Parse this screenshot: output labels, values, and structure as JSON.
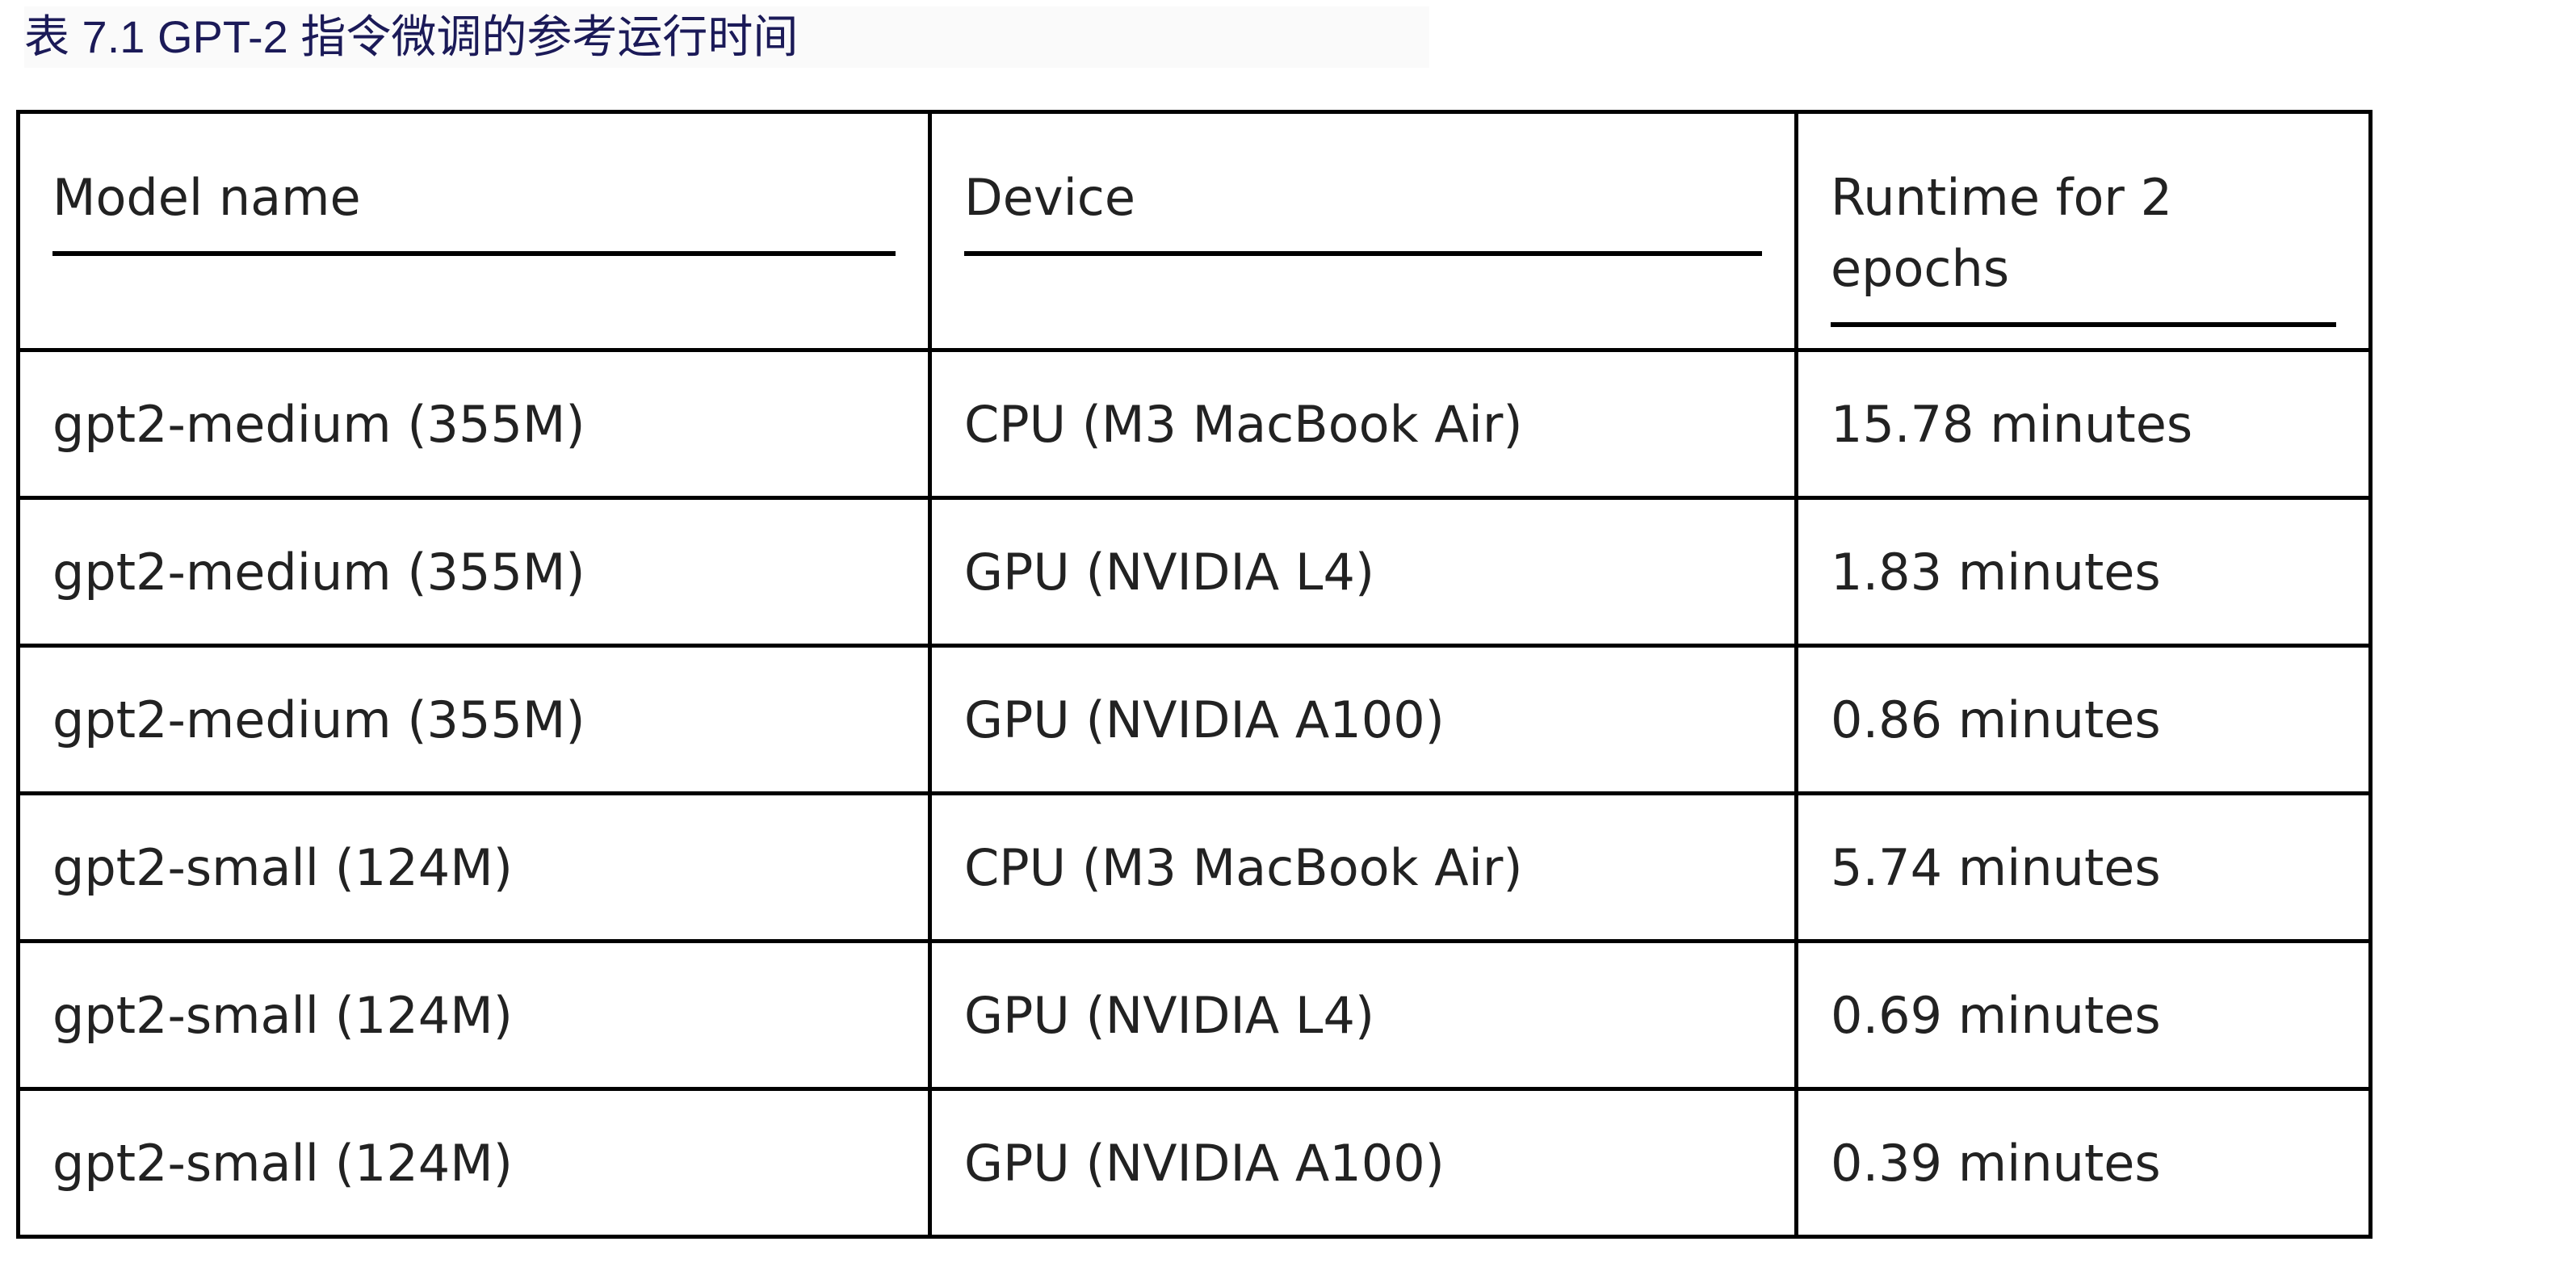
{
  "caption": "表 7.1 GPT-2 指令微调的参考运行时间",
  "table": {
    "headers": [
      "Model name",
      "Device",
      "Runtime for 2 epochs"
    ],
    "rows": [
      [
        "gpt2-medium (355M)",
        "CPU (M3 MacBook Air)",
        "15.78 minutes"
      ],
      [
        "gpt2-medium (355M)",
        "GPU (NVIDIA L4)",
        "1.83 minutes"
      ],
      [
        "gpt2-medium (355M)",
        "GPU (NVIDIA A100)",
        "0.86 minutes"
      ],
      [
        "gpt2-small (124M)",
        "CPU (M3 MacBook Air)",
        "5.74 minutes"
      ],
      [
        "gpt2-small (124M)",
        "GPU (NVIDIA L4)",
        "0.69 minutes"
      ],
      [
        "gpt2-small (124M)",
        "GPU (NVIDIA A100)",
        "0.39 minutes"
      ]
    ]
  }
}
